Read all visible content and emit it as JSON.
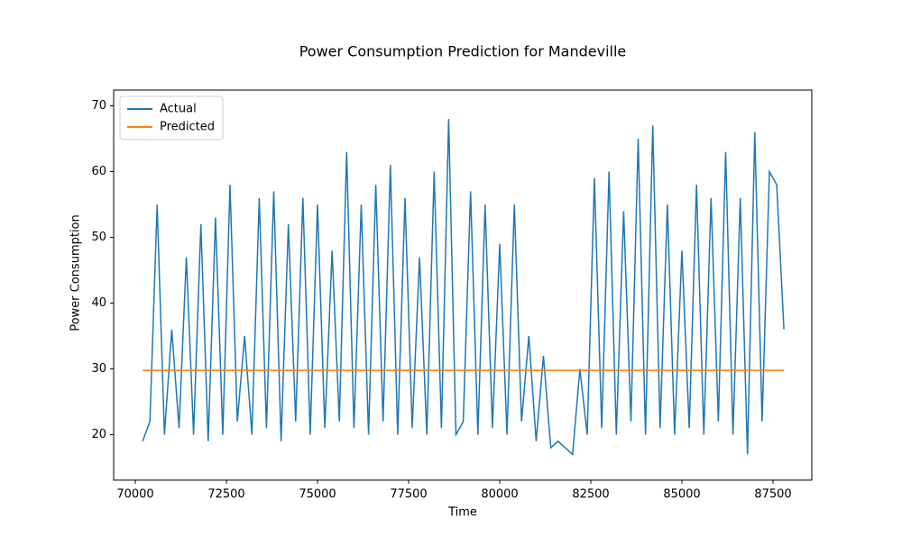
{
  "chart_data": {
    "type": "line",
    "title": "Power Consumption Prediction for Mandeville",
    "xlabel": "Time",
    "ylabel": "Power Consumption",
    "xlim": [
      69406,
      88564
    ],
    "ylim": [
      13.1,
      72.4
    ],
    "xticks": [
      70000,
      72500,
      75000,
      77500,
      80000,
      82500,
      85000,
      87500
    ],
    "yticks": [
      20,
      30,
      40,
      50,
      60,
      70
    ],
    "legend": "upper left",
    "series": [
      {
        "name": "Actual",
        "color": "#1f77b4",
        "x": [
          70200,
          70400,
          70600,
          70800,
          71000,
          71200,
          71400,
          71600,
          71800,
          72000,
          72200,
          72400,
          72600,
          72800,
          73000,
          73200,
          73400,
          73600,
          73800,
          74000,
          74200,
          74400,
          74600,
          74800,
          75000,
          75200,
          75400,
          75600,
          75800,
          76000,
          76200,
          76400,
          76600,
          76800,
          77000,
          77200,
          77400,
          77600,
          77800,
          78000,
          78200,
          78400,
          78600,
          78800,
          79000,
          79200,
          79400,
          79600,
          79800,
          80000,
          80200,
          80400,
          80600,
          80800,
          81000,
          81200,
          81400,
          81600,
          81800,
          82000,
          82200,
          82400,
          82600,
          82800,
          83000,
          83200,
          83400,
          83600,
          83800,
          84000,
          84200,
          84400,
          84600,
          84800,
          85000,
          85200,
          85400,
          85600,
          85800,
          86000,
          86200,
          86400,
          86600,
          86800,
          87000,
          87200,
          87400,
          87600,
          87800
        ],
        "values": [
          19,
          22,
          55,
          20,
          36,
          21,
          47,
          20,
          52,
          19,
          53,
          20,
          58,
          22,
          35,
          20,
          56,
          21,
          57,
          19,
          52,
          22,
          56,
          20,
          55,
          21,
          48,
          22,
          63,
          21,
          55,
          20,
          58,
          22,
          61,
          20,
          56,
          21,
          47,
          20,
          60,
          21,
          68,
          20,
          22,
          57,
          20,
          55,
          21,
          49,
          20,
          55,
          22,
          35,
          19,
          32,
          18,
          19,
          18,
          17,
          30,
          20,
          59,
          21,
          60,
          20,
          54,
          22,
          65,
          20,
          67,
          21,
          55,
          20,
          48,
          21,
          58,
          20,
          56,
          22,
          63,
          20,
          56,
          17,
          66,
          22,
          60,
          58,
          36
        ]
      },
      {
        "name": "Predicted",
        "color": "#ff7f0e",
        "x": [
          70200,
          87800
        ],
        "values": [
          29.8,
          29.8
        ]
      }
    ]
  }
}
